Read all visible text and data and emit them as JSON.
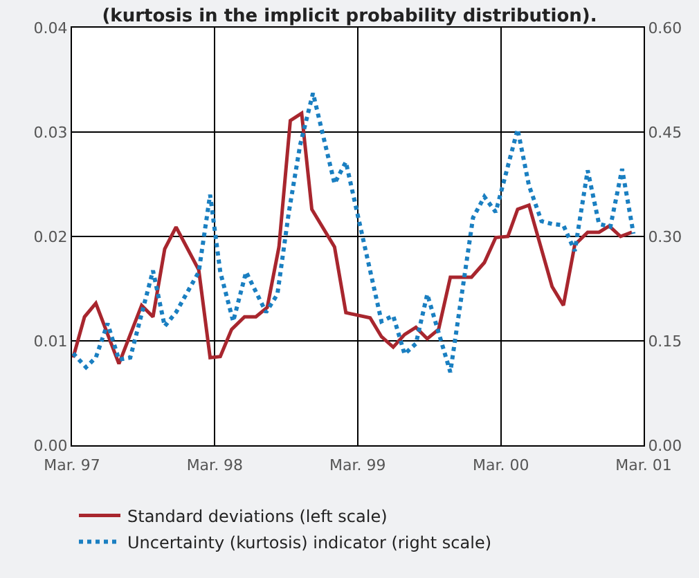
{
  "chart_data": {
    "type": "line",
    "title": "(kurtosis in the implicit probability distribution).",
    "xlim": [
      "1997-03-01",
      "2001-03-01"
    ],
    "xticks": [
      {
        "value": "1997-03-01",
        "label": "Mar. 97"
      },
      {
        "value": "1998-03-01",
        "label": "Mar. 98"
      },
      {
        "value": "1999-03-01",
        "label": "Mar. 99"
      },
      {
        "value": "2000-03-01",
        "label": "Mar. 00"
      },
      {
        "value": "2001-03-01",
        "label": "Mar. 01"
      }
    ],
    "ylim": [
      0,
      0.04
    ],
    "yticks": [
      {
        "value": 0,
        "label": "0.00"
      },
      0.01,
      0.02,
      0.03,
      0.04
    ],
    "y2lim": [
      0,
      0.6
    ],
    "y2ticks": [
      {
        "value": 0,
        "label": "0.00"
      },
      0.15,
      {
        "value": 0.3,
        "label": "0.30"
      },
      0.45,
      {
        "value": 0.6,
        "label": "0.60"
      }
    ],
    "grid": true,
    "legend": "bottom",
    "marker": "none",
    "series": [
      {
        "name": "Standard deviations (left scale)",
        "color": "#a8262e",
        "line_style": "solid",
        "x": [
          "1997-03-04",
          "1997-04-02",
          "1997-05-01",
          "1997-06-29",
          "1997-07-28",
          "1997-08-26",
          "1997-09-24",
          "1997-10-24",
          "1997-11-22",
          "1998-01-19",
          "1998-02-17",
          "1998-03-15",
          "1998-04-13",
          "1998-05-16",
          "1998-06-14",
          "1998-07-13",
          "1998-08-12",
          "1998-09-10",
          "1998-10-09",
          "1998-11-04",
          "1999-01-01",
          "1999-01-30",
          "1999-04-02",
          "1999-05-01",
          "1999-05-31",
          "1999-06-29",
          "1999-07-28",
          "1999-08-26",
          "1999-09-24",
          "1999-10-24",
          "1999-12-17",
          "2000-01-19",
          "2000-02-17",
          "2000-03-19",
          "2000-04-13",
          "2000-05-12",
          "2000-07-10",
          "2000-08-08",
          "2000-09-06",
          "2000-10-09",
          "2000-11-07",
          "2000-12-03",
          "2001-01-01",
          "2001-01-30"
        ],
        "values": [
          0.0084,
          0.0123,
          0.0136,
          0.0078,
          0.0106,
          0.0134,
          0.0123,
          0.0188,
          0.0209,
          0.0168,
          0.0084,
          0.0085,
          0.0111,
          0.0123,
          0.0123,
          0.0132,
          0.019,
          0.0311,
          0.0318,
          0.0226,
          0.019,
          0.0127,
          0.0122,
          0.0104,
          0.0094,
          0.0106,
          0.0113,
          0.0102,
          0.0111,
          0.0161,
          0.0161,
          0.0175,
          0.0199,
          0.02,
          0.0226,
          0.023,
          0.0152,
          0.0134,
          0.0192,
          0.0204,
          0.0204,
          0.021,
          0.02,
          0.0204
        ]
      },
      {
        "name": "Uncertainty (kurtosis) indicator (right scale)",
        "color": "#1a7fc1",
        "line_style": "dotted",
        "axis": "y2",
        "x": [
          "1997-03-04",
          "1997-04-06",
          "1997-05-01",
          "1997-05-31",
          "1997-06-29",
          "1997-07-28",
          "1997-09-24",
          "1997-10-24",
          "1997-11-22",
          "1998-01-19",
          "1998-02-17",
          "1998-03-15",
          "1998-04-17",
          "1998-05-20",
          "1998-07-10",
          "1998-08-08",
          "1998-09-06",
          "1998-10-05",
          "1998-11-07",
          "1999-01-01",
          "1999-01-30",
          "1999-05-01",
          "1999-05-31",
          "1999-06-29",
          "1999-07-28",
          "1999-08-26",
          "1999-10-24",
          "1999-12-21",
          "2000-01-19",
          "2000-02-17",
          "2000-04-13",
          "2000-05-12",
          "2000-06-13",
          "2000-07-10",
          "2000-08-08",
          "2000-09-06",
          "2000-10-09",
          "2000-11-07",
          "2000-12-06",
          "2001-01-05",
          "2001-02-03"
        ],
        "values": [
          0.132,
          0.112,
          0.126,
          0.175,
          0.123,
          0.126,
          0.251,
          0.171,
          0.191,
          0.249,
          0.36,
          0.249,
          0.178,
          0.249,
          0.191,
          0.217,
          0.334,
          0.431,
          0.506,
          0.376,
          0.407,
          0.178,
          0.186,
          0.131,
          0.146,
          0.217,
          0.105,
          0.327,
          0.357,
          0.335,
          0.454,
          0.373,
          0.322,
          0.318,
          0.316,
          0.279,
          0.395,
          0.318,
          0.314,
          0.397,
          0.304
        ]
      }
    ]
  }
}
